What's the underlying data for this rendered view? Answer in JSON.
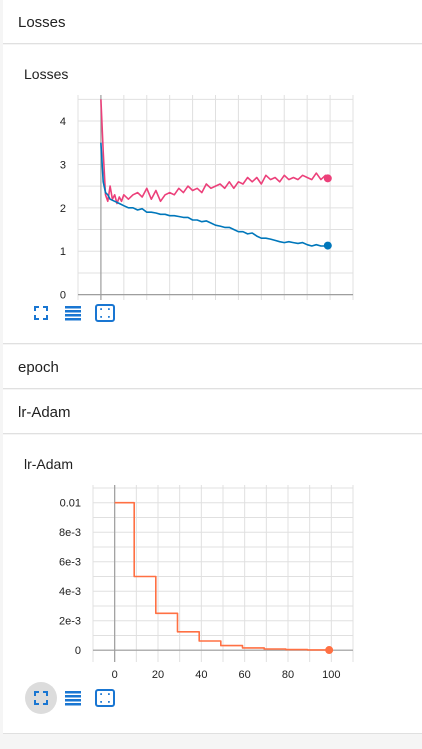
{
  "sections": {
    "losses_header": "Losses",
    "epoch_header": "epoch",
    "lr_header": "lr-Adam"
  },
  "cards": {
    "losses_title": "Losses",
    "lr_title": "lr-Adam"
  },
  "icons": {
    "expand": "fit-screen-icon",
    "data": "data-table-icon",
    "fit": "fit-domain-icon"
  },
  "colors": {
    "pink": "#ec407a",
    "blue": "#0077bb",
    "orange": "#ff7043",
    "icon": "#1976d2"
  },
  "chart_data": [
    {
      "type": "line",
      "title": "Losses",
      "xlim": [
        -10,
        110
      ],
      "ylim": [
        -0.4,
        4.6
      ],
      "x_ticks": [
        "0",
        "20",
        "40",
        "60",
        "80",
        "100"
      ],
      "y_ticks": [
        "0",
        "1",
        "2",
        "3",
        "4"
      ],
      "series": [
        {
          "color": "#ec407a",
          "x": [
            0,
            1,
            2,
            3,
            4,
            5,
            6,
            7,
            8,
            9,
            10,
            12,
            14,
            16,
            18,
            20,
            22,
            24,
            26,
            28,
            30,
            32,
            34,
            36,
            38,
            40,
            42,
            44,
            46,
            48,
            50,
            52,
            54,
            56,
            58,
            60,
            62,
            64,
            66,
            68,
            70,
            72,
            74,
            76,
            78,
            80,
            82,
            84,
            86,
            88,
            90,
            92,
            94,
            96,
            98,
            99
          ],
          "values": [
            4.5,
            3.3,
            2.3,
            2.15,
            2.5,
            2.2,
            2.3,
            2.1,
            2.25,
            2.15,
            2.3,
            2.2,
            2.3,
            2.35,
            2.25,
            2.45,
            2.2,
            2.4,
            2.15,
            2.3,
            2.35,
            2.3,
            2.45,
            2.35,
            2.5,
            2.4,
            2.45,
            2.35,
            2.55,
            2.45,
            2.5,
            2.55,
            2.45,
            2.6,
            2.45,
            2.6,
            2.55,
            2.7,
            2.6,
            2.7,
            2.55,
            2.75,
            2.65,
            2.7,
            2.6,
            2.75,
            2.65,
            2.7,
            2.65,
            2.75,
            2.7,
            2.65,
            2.8,
            2.65,
            2.75,
            2.68
          ]
        },
        {
          "color": "#0077bb",
          "x": [
            0,
            1,
            2,
            3,
            4,
            6,
            8,
            10,
            12,
            14,
            16,
            18,
            20,
            22,
            24,
            26,
            28,
            30,
            32,
            34,
            36,
            38,
            40,
            42,
            44,
            46,
            48,
            50,
            52,
            54,
            56,
            58,
            60,
            62,
            64,
            66,
            68,
            70,
            72,
            74,
            76,
            78,
            80,
            82,
            84,
            86,
            88,
            90,
            92,
            94,
            96,
            98,
            99
          ],
          "values": [
            3.5,
            2.6,
            2.35,
            2.3,
            2.2,
            2.15,
            2.1,
            2.05,
            2.0,
            2.0,
            1.95,
            1.98,
            1.9,
            1.9,
            1.88,
            1.85,
            1.85,
            1.82,
            1.82,
            1.8,
            1.78,
            1.78,
            1.72,
            1.72,
            1.68,
            1.7,
            1.65,
            1.6,
            1.58,
            1.55,
            1.55,
            1.5,
            1.45,
            1.45,
            1.4,
            1.42,
            1.35,
            1.3,
            1.3,
            1.28,
            1.25,
            1.22,
            1.2,
            1.22,
            1.2,
            1.18,
            1.2,
            1.15,
            1.12,
            1.15,
            1.12,
            1.12,
            1.13
          ]
        }
      ]
    },
    {
      "type": "line",
      "title": "lr-Adam",
      "xlim": [
        -10,
        110
      ],
      "ylim": [
        -0.0008,
        0.0112
      ],
      "x_ticks": [
        "0",
        "20",
        "40",
        "60",
        "80",
        "100"
      ],
      "y_ticks": [
        "0",
        "2e-3",
        "4e-3",
        "6e-3",
        "8e-3",
        "0.01"
      ],
      "series": [
        {
          "color": "#ff7043",
          "x": [
            0,
            9,
            9,
            10,
            10,
            19,
            19,
            20,
            20,
            29,
            29,
            30,
            30,
            39,
            39,
            40,
            40,
            49,
            49,
            50,
            50,
            59,
            59,
            60,
            60,
            69,
            69,
            70,
            70,
            79,
            79,
            80,
            80,
            89,
            89,
            90,
            90,
            99,
            99
          ],
          "values": [
            0.01,
            0.01,
            0.005,
            0.005,
            0.005,
            0.005,
            0.0025,
            0.0025,
            0.0025,
            0.0025,
            0.00125,
            0.00125,
            0.00125,
            0.00125,
            0.000625,
            0.000625,
            0.000625,
            0.000625,
            0.0003125,
            0.0003125,
            0.0003125,
            0.0003125,
            0.00015625,
            0.00015625,
            0.00015625,
            0.00015625,
            7.8e-05,
            7.8e-05,
            7.8e-05,
            7.8e-05,
            3.9e-05,
            3.9e-05,
            3.9e-05,
            3.9e-05,
            2e-05,
            2e-05,
            2e-05,
            2e-05,
            1e-05
          ]
        }
      ]
    }
  ]
}
